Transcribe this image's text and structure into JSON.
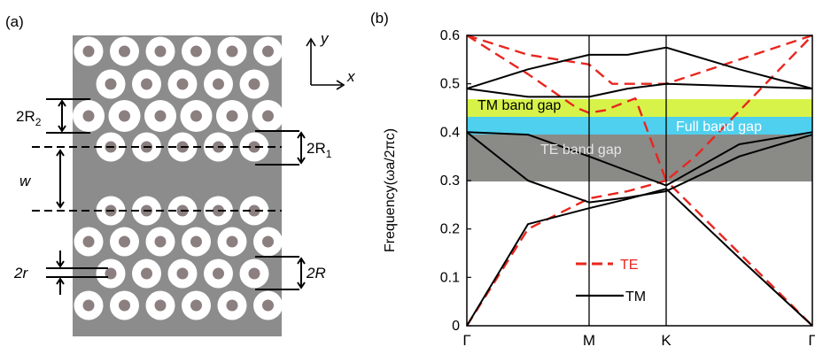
{
  "panel_a": {
    "label": "(a)",
    "axis_x": "x",
    "axis_y": "y",
    "dim_2R2": "2R",
    "dim_2R2_sub": "2",
    "dim_2R1": "2R",
    "dim_2R1_sub": "1",
    "dim_w": "w",
    "dim_2r": "2r",
    "dim_2R": "2R",
    "colors": {
      "slab": "#8c8c8c",
      "ring": "#ffffff",
      "core": "#8c7f7f"
    }
  },
  "panel_b": {
    "label": "(b)",
    "ylabel": "Frequency(ωa/2πc)",
    "band_labels": {
      "tm": "TM band gap",
      "full": "Full band gap",
      "te": "TE band gap"
    },
    "legend": {
      "te": "TE",
      "tm": "TM"
    },
    "colors": {
      "te": "#e8261f",
      "tm": "#000000",
      "tm_gap": "#d7f34a",
      "full_gap": "#4fd0ee",
      "te_gap": "#8a8a87"
    },
    "chart_data": {
      "type": "line",
      "ylim": [
        0,
        0.6
      ],
      "yticks": [
        "0",
        "0.1",
        "0.2",
        "0.3",
        "0.4",
        "0.5",
        "0.6"
      ],
      "xticks": [
        "Γ",
        "M",
        "K",
        "Γ"
      ],
      "gaps": [
        {
          "name": "TM band gap",
          "range": [
            0.435,
            0.475
          ]
        },
        {
          "name": "Full band gap",
          "range": [
            0.405,
            0.435
          ]
        },
        {
          "name": "TE band gap",
          "range": [
            0.3,
            0.405
          ]
        }
      ],
      "series": [
        {
          "name": "TE",
          "bands": [
            [
              [
                0,
                0
              ],
              [
                0.5,
                0.2
              ],
              [
                1,
                0.263
              ],
              [
                1.5,
                0.278
              ],
              [
                2,
                0.3
              ],
              [
                2.5,
                0.15
              ],
              [
                3,
                0
              ]
            ],
            [
              [
                0,
                0.6
              ],
              [
                0.5,
                0.52
              ],
              [
                0.9,
                0.45
              ],
              [
                1,
                0.44
              ],
              [
                1.2,
                0.445
              ],
              [
                1.6,
                0.47
              ],
              [
                2,
                0.3
              ],
              [
                2.2,
                0.35
              ],
              [
                3,
                0.6
              ]
            ],
            [
              [
                0,
                0.6
              ],
              [
                0.5,
                0.56
              ],
              [
                1,
                0.54
              ],
              [
                1.3,
                0.5
              ],
              [
                2,
                0.5
              ],
              [
                2.5,
                0.55
              ],
              [
                3,
                0.6
              ]
            ]
          ]
        },
        {
          "name": "TM",
          "bands": [
            [
              [
                0,
                0
              ],
              [
                0.5,
                0.21
              ],
              [
                1,
                0.243
              ],
              [
                1.5,
                0.262
              ],
              [
                2,
                0.283
              ],
              [
                2.5,
                0.14
              ],
              [
                3,
                0
              ]
            ],
            [
              [
                0,
                0.4
              ],
              [
                0.5,
                0.3
              ],
              [
                1,
                0.255
              ],
              [
                1.5,
                0.265
              ],
              [
                2,
                0.278
              ],
              [
                2.5,
                0.35
              ],
              [
                3,
                0.395
              ]
            ],
            [
              [
                0,
                0.4
              ],
              [
                0.5,
                0.395
              ],
              [
                1,
                0.35
              ],
              [
                2,
                0.29
              ],
              [
                2.5,
                0.375
              ],
              [
                3,
                0.4
              ]
            ],
            [
              [
                0,
                0.49
              ],
              [
                0.5,
                0.473
              ],
              [
                1,
                0.473
              ],
              [
                1.5,
                0.49
              ],
              [
                2,
                0.5
              ],
              [
                2.5,
                0.495
              ],
              [
                3,
                0.49
              ]
            ],
            [
              [
                0,
                0.49
              ],
              [
                0.5,
                0.53
              ],
              [
                1,
                0.56
              ],
              [
                1.5,
                0.56
              ],
              [
                2,
                0.575
              ],
              [
                2.5,
                0.53
              ],
              [
                3,
                0.49
              ]
            ]
          ]
        }
      ]
    }
  }
}
